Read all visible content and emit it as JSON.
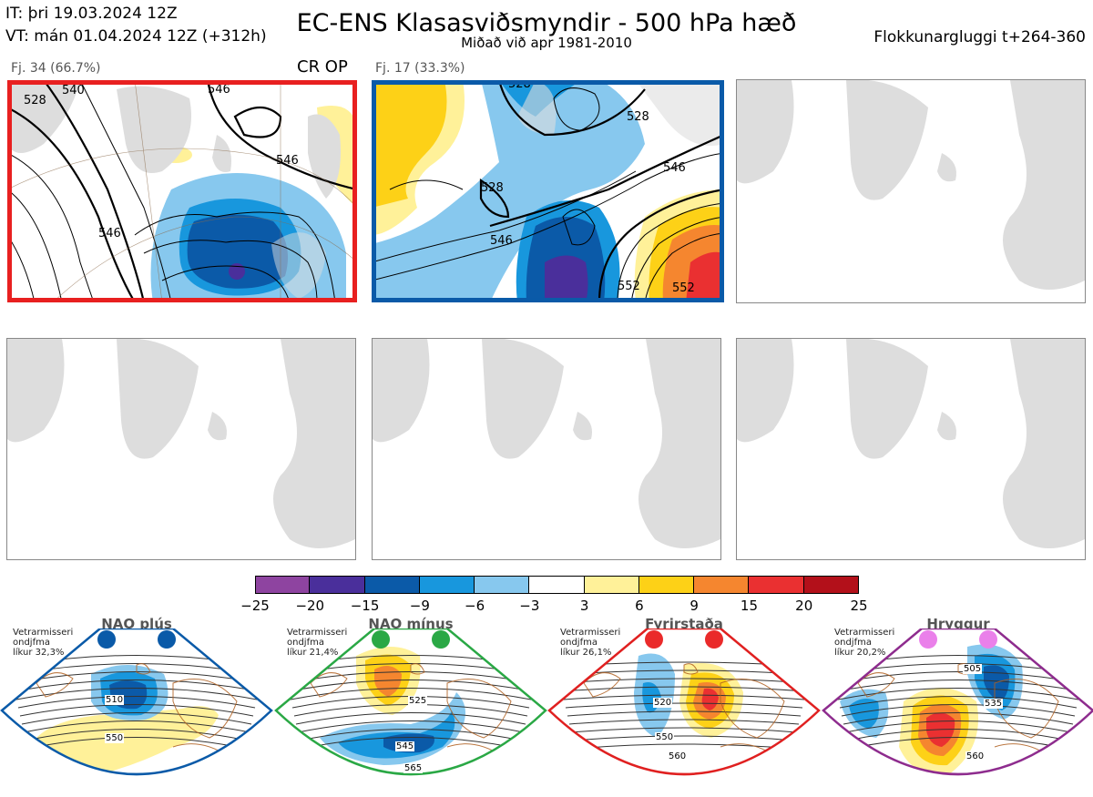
{
  "header": {
    "it_line": "IT: þri 19.03.2024 12Z",
    "vt_line": "VT: mán 01.04.2024 12Z  (+312h)",
    "title": "EC-ENS Klasasviðsmyndir - 500 hPa hæð",
    "subtitle": "Miðað við apr 1981-2010",
    "window": "Flokkunargluggi t+264-360"
  },
  "clusters": [
    {
      "label": "Fj. 34 (66.7%)",
      "tag": "CR OP",
      "border_color": "#e82020",
      "contours": [
        "528",
        "546",
        "540",
        "546",
        "546"
      ]
    },
    {
      "label": "Fj. 17 (33.3%)",
      "tag": "",
      "border_color": "#0a5aa8",
      "contours": [
        "528",
        "528",
        "528",
        "546",
        "546",
        "552",
        "552"
      ]
    }
  ],
  "colorbar": {
    "colors": [
      "#8e44a0",
      "#4a2f9b",
      "#0b5aa8",
      "#1897dd",
      "#87c8ee",
      "#ffffff",
      "#fff199",
      "#fdd117",
      "#f5862f",
      "#ea3031",
      "#b3101a"
    ],
    "ticks": [
      "−25",
      "−20",
      "−15",
      "−9",
      "−6",
      "−3",
      "3",
      "6",
      "9",
      "15",
      "20",
      "25"
    ]
  },
  "regimes": [
    {
      "name": "NAO plús",
      "note": [
        "Vetrarmisseri",
        "ondjfma",
        "líkur 32,3%"
      ],
      "border": "#0a5aa8",
      "dot": "#0a5aa8",
      "labels": [
        "510",
        "550"
      ]
    },
    {
      "name": "NAO mínus",
      "note": [
        "Vetrarmisseri",
        "ondjfma",
        "líkur 21,4%"
      ],
      "border": "#2aa845",
      "dot": "#2aa845",
      "labels": [
        "525",
        "545",
        "565"
      ]
    },
    {
      "name": "Fyrirstaða",
      "note": [
        "Vetrarmisseri",
        "ondjfma",
        "líkur 26,1%"
      ],
      "border": "#e02020",
      "dot": "#ea2a2a",
      "labels": [
        "520",
        "550",
        "560"
      ]
    },
    {
      "name": "Hryggur",
      "note": [
        "Vetrarmisseri",
        "ondjfma",
        "líkur 20,2%"
      ],
      "border": "#8e2c8e",
      "dot": "#ea80ea",
      "labels": [
        "505",
        "535",
        "560"
      ]
    }
  ]
}
